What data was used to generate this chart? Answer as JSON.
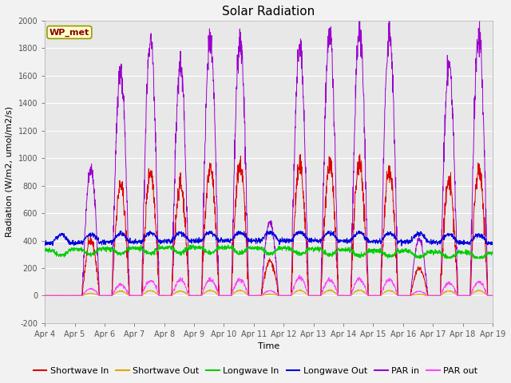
{
  "title": "Solar Radiation",
  "ylabel": "Radiation (W/m2, umol/m2/s)",
  "xlabel": "Time",
  "ylim": [
    -200,
    2000
  ],
  "yticks": [
    -200,
    0,
    200,
    400,
    600,
    800,
    1000,
    1200,
    1400,
    1600,
    1800,
    2000
  ],
  "xtick_labels": [
    "Apr 4",
    "Apr 5",
    "Apr 6",
    "Apr 7",
    "Apr 8",
    "Apr 9",
    "Apr 10",
    "Apr 11",
    "Apr 12",
    "Apr 13",
    "Apr 14",
    "Apr 15",
    "Apr 16",
    "Apr 17",
    "Apr 18",
    "Apr 19"
  ],
  "legend_label": "WP_met",
  "series_colors": {
    "shortwave_in": "#dd0000",
    "shortwave_out": "#ddaa00",
    "longwave_in": "#00cc00",
    "longwave_out": "#0000dd",
    "par_in": "#9900cc",
    "par_out": "#ff44ff"
  },
  "series_labels": [
    "Shortwave In",
    "Shortwave Out",
    "Longwave In",
    "Longwave Out",
    "PAR in",
    "PAR out"
  ],
  "plot_bg_color": "#e8e8e8",
  "fig_bg_color": "#f2f2f2",
  "title_fontsize": 11,
  "label_fontsize": 8,
  "tick_fontsize": 7,
  "legend_fontsize": 8,
  "grid_color": "#ffffff",
  "legend_box_facecolor": "#ffffcc",
  "legend_box_edgecolor": "#999900",
  "legend_text_color": "#880000"
}
